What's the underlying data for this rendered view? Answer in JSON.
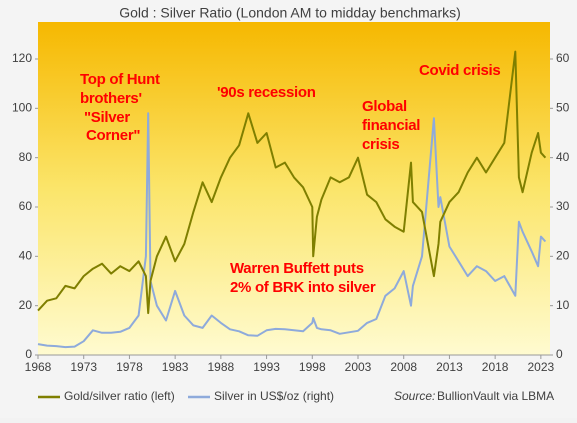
{
  "chart_data": {
    "type": "line",
    "title": "Gold : Silver Ratio (London AM to midday benchmarks)",
    "x": [
      1968,
      1969,
      1970,
      1971,
      1972,
      1973,
      1974,
      1975,
      1976,
      1977,
      1978,
      1979,
      1979.8,
      1980.05,
      1980.3,
      1981,
      1982,
      1983,
      1984,
      1985,
      1986,
      1987,
      1988,
      1989,
      1990,
      1991,
      1992,
      1993,
      1994,
      1995,
      1996,
      1997,
      1998,
      1998.1,
      1998.5,
      1999,
      2000,
      2001,
      2002,
      2003,
      2004,
      2005,
      2006,
      2007,
      2008,
      2008.8,
      2009,
      2010,
      2011.3,
      2011.8,
      2012,
      2013,
      2014,
      2015,
      2016,
      2017,
      2018,
      2019,
      2020.2,
      2020.6,
      2021,
      2022,
      2022.7,
      2023,
      2023.5
    ],
    "series": [
      {
        "name": "Gold/silver ratio (left)",
        "color": "#7f7f00",
        "axis": "y",
        "values": [
          18,
          22,
          23,
          28,
          27,
          32,
          35,
          37,
          33,
          36,
          34,
          38,
          32,
          17,
          30,
          40,
          48,
          38,
          45,
          58,
          70,
          62,
          72,
          80,
          85,
          98,
          86,
          90,
          76,
          78,
          72,
          68,
          60,
          40,
          56,
          63,
          72,
          70,
          72,
          80,
          65,
          62,
          55,
          52,
          50,
          78,
          62,
          58,
          32,
          45,
          54,
          62,
          66,
          74,
          80,
          74,
          80,
          86,
          123,
          72,
          66,
          82,
          90,
          82,
          80
        ]
      },
      {
        "name": "Silver in US$/oz (right)",
        "color": "#8eaadb",
        "axis": "y2",
        "values": [
          2.2,
          1.9,
          1.8,
          1.6,
          1.7,
          2.8,
          5,
          4.5,
          4.5,
          4.7,
          5.5,
          8,
          20,
          49,
          15,
          10,
          7,
          13,
          8,
          6,
          5.5,
          8,
          6.5,
          5.2,
          4.8,
          4,
          3.9,
          5,
          5.3,
          5.2,
          5,
          4.8,
          6.5,
          7.5,
          5.5,
          5.2,
          5,
          4.3,
          4.6,
          4.9,
          6.5,
          7.3,
          12,
          13.5,
          17,
          10,
          14,
          20,
          48,
          30,
          32,
          22,
          19,
          16,
          18,
          17,
          15,
          16,
          12,
          27,
          25,
          21,
          18,
          24,
          23
        ]
      }
    ],
    "xlim": [
      1968,
      2024
    ],
    "xticks": [
      1968,
      1973,
      1978,
      1983,
      1988,
      1993,
      1998,
      2003,
      2008,
      2013,
      2018,
      2023
    ],
    "ylim": [
      0,
      135
    ],
    "yticks": [
      0,
      20,
      40,
      60,
      80,
      100,
      120
    ],
    "y2lim": [
      0,
      67.5
    ],
    "y2ticks": [
      0,
      10,
      20,
      30,
      40,
      50,
      60
    ],
    "annotations": [
      {
        "text": [
          "Top of Hunt",
          "brothers'",
          "\"Silver",
          "Corner\""
        ]
      },
      {
        "text": [
          "'90s recession"
        ]
      },
      {
        "text": [
          "Global",
          "financial",
          "crisis"
        ]
      },
      {
        "text": [
          "Covid crisis"
        ]
      },
      {
        "text": [
          "Warren Buffett puts",
          "2% of BRK into silver"
        ]
      }
    ],
    "source_label": "Source:",
    "source": "BullionVault via LBMA",
    "legend": "bottom"
  }
}
